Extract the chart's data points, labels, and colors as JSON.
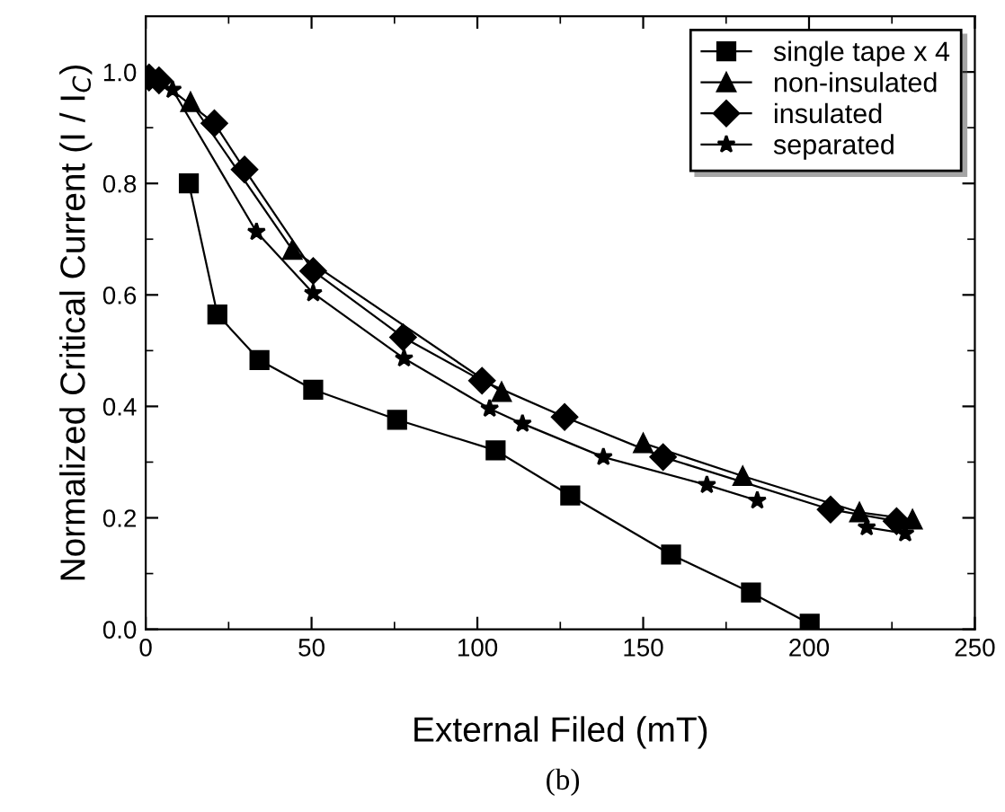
{
  "chart_data": {
    "type": "line",
    "xlabel": "External Filed (mT)",
    "ylabel": "Normalized Critical Current (I / I$_{C}$)",
    "annotations": [
      "(b)"
    ],
    "xlim": [
      0,
      250
    ],
    "xticks": [
      {
        "value": 0,
        "label": "0"
      },
      50,
      100,
      150,
      200,
      250
    ],
    "ylim": [
      0,
      1.1
    ],
    "yticks": [
      {
        "value": 0,
        "label": "0.0"
      },
      0.2,
      0.4,
      0.6,
      0.8,
      {
        "value": 1,
        "label": "1.0"
      }
    ],
    "grid": false,
    "legend": "top right",
    "line_style": "solid",
    "series": [
      {
        "name": "single tape x 4",
        "color": "#000000",
        "marker": "square",
        "x": [
          13,
          21.6,
          34.3,
          50.5,
          75.8,
          105.5,
          128,
          158.4,
          182.5,
          200.2
        ],
        "values": [
          0.8,
          0.565,
          0.483,
          0.43,
          0.376,
          0.321,
          0.24,
          0.134,
          0.066,
          0.01
        ]
      },
      {
        "name": "non-insulated",
        "color": "#000000",
        "marker": "triangle",
        "x": [
          13.5,
          44.2,
          107.3,
          128,
          150,
          180,
          215.2,
          231.2
        ],
        "values": [
          0.946,
          0.681,
          0.426,
          null,
          0.334,
          0.275,
          0.21,
          0.197
        ]
      },
      {
        "name": "insulated",
        "color": "#000000",
        "marker": "diamond",
        "x": [
          1,
          4,
          20.7,
          29.8,
          50.5,
          77.6,
          101.4,
          126.3,
          156,
          206.5,
          226.4
        ],
        "values": [
          0.99,
          0.985,
          0.908,
          0.825,
          0.643,
          0.524,
          0.446,
          0.381,
          0.309,
          0.215,
          0.194
        ]
      },
      {
        "name": "separated",
        "color": "#000000",
        "marker": "star",
        "x": [
          8.1,
          33.4,
          50.5,
          77.9,
          103.7,
          113.6,
          138,
          169.2,
          184.4,
          205.6,
          217.4,
          229
        ],
        "values": [
          0.968,
          0.713,
          0.603,
          0.486,
          0.396,
          0.369,
          0.309,
          0.259,
          0.231,
          null,
          0.183,
          0.172
        ]
      }
    ]
  }
}
